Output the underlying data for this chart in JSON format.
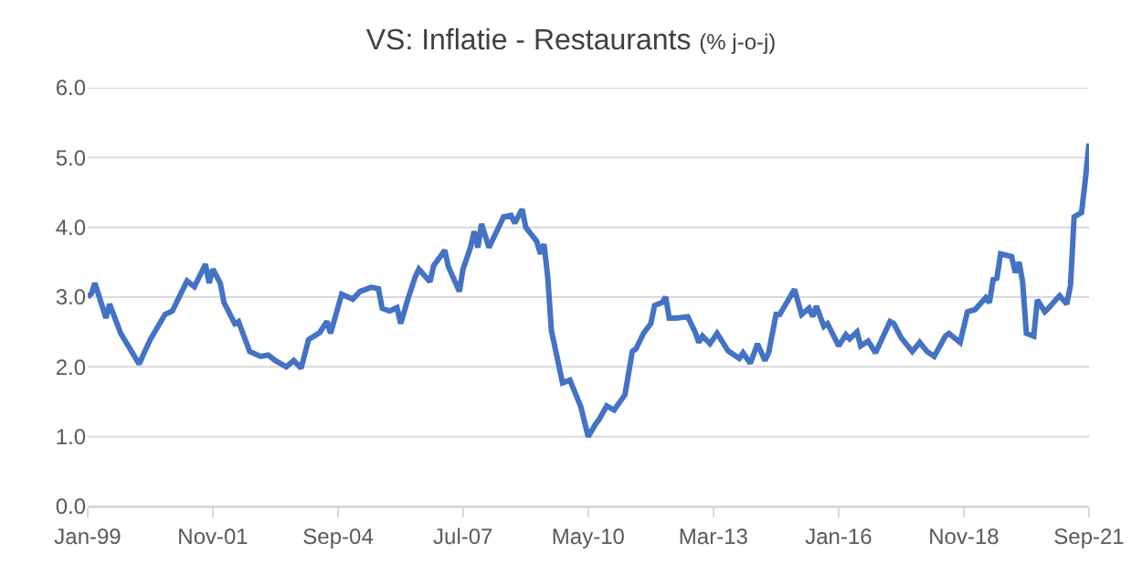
{
  "chart_data": {
    "type": "line",
    "title": "VS: Inflatie - Restaurants",
    "subtitle": "(% j-o-j)",
    "x": [
      "1999-01",
      "1999-02",
      "1999-03",
      "1999-06",
      "1999-07",
      "1999-10",
      "2000-03",
      "2000-06",
      "2000-10",
      "2000-12",
      "2001-04",
      "2001-06",
      "2001-09",
      "2001-10",
      "2001-11",
      "2002-01",
      "2002-02",
      "2002-05",
      "2002-06",
      "2002-09",
      "2002-12",
      "2003-02",
      "2003-04",
      "2003-07",
      "2003-09",
      "2003-11",
      "2004-01",
      "2004-04",
      "2004-06",
      "2004-07",
      "2004-10",
      "2005-01",
      "2005-03",
      "2005-06",
      "2005-08",
      "2005-09",
      "2005-11",
      "2006-01",
      "2006-02",
      "2006-04",
      "2006-06",
      "2006-07",
      "2006-10",
      "2006-11",
      "2007-02",
      "2007-03",
      "2007-06",
      "2007-07",
      "2007-09",
      "2007-10",
      "2007-11",
      "2007-12",
      "2008-02",
      "2008-06",
      "2008-08",
      "2008-09",
      "2008-11",
      "2008-12",
      "2009-03",
      "2009-04",
      "2009-05",
      "2009-06",
      "2009-07",
      "2009-10",
      "2009-12",
      "2010-03",
      "2010-05",
      "2010-07",
      "2010-08",
      "2010-10",
      "2010-12",
      "2011-03",
      "2011-05",
      "2011-06",
      "2011-08",
      "2011-10",
      "2011-11",
      "2012-01",
      "2012-02",
      "2012-03",
      "2012-05",
      "2012-08",
      "2012-10",
      "2012-11",
      "2012-12",
      "2013-02",
      "2013-04",
      "2013-07",
      "2013-10",
      "2013-11",
      "2014-01",
      "2014-03",
      "2014-05",
      "2014-06",
      "2014-08",
      "2014-09",
      "2015-01",
      "2015-03",
      "2015-05",
      "2015-06",
      "2015-07",
      "2015-09",
      "2015-10",
      "2016-01",
      "2016-03",
      "2016-04",
      "2016-06",
      "2016-07",
      "2016-09",
      "2016-11",
      "2017-03",
      "2017-04",
      "2017-06",
      "2017-09",
      "2017-11",
      "2018-01",
      "2018-03",
      "2018-06",
      "2018-07",
      "2018-10",
      "2018-12",
      "2019-02",
      "2019-05",
      "2019-06",
      "2019-07",
      "2019-08",
      "2019-09",
      "2019-12",
      "2020-01",
      "2020-02",
      "2020-03",
      "2020-04",
      "2020-06",
      "2020-07",
      "2020-09",
      "2020-10",
      "2020-12",
      "2021-01",
      "2021-03",
      "2021-04",
      "2021-05",
      "2021-07",
      "2021-08",
      "2021-09"
    ],
    "series": [
      {
        "color": "#4472c4",
        "values": [
          3.0,
          3.05,
          3.2,
          2.7,
          2.9,
          2.48,
          2.04,
          2.39,
          2.75,
          2.8,
          3.23,
          3.15,
          3.47,
          3.2,
          3.4,
          3.2,
          2.92,
          2.62,
          2.65,
          2.22,
          2.15,
          2.17,
          2.09,
          2.0,
          2.09,
          1.98,
          2.39,
          2.49,
          2.65,
          2.48,
          3.04,
          2.97,
          3.08,
          3.14,
          3.12,
          2.84,
          2.8,
          2.85,
          2.62,
          2.97,
          3.29,
          3.4,
          3.22,
          3.45,
          3.67,
          3.44,
          3.08,
          3.4,
          3.71,
          3.94,
          3.71,
          4.05,
          3.71,
          4.15,
          4.17,
          4.06,
          4.26,
          4.0,
          3.8,
          3.62,
          3.76,
          3.28,
          2.52,
          1.77,
          1.81,
          1.43,
          1.0,
          1.18,
          1.25,
          1.44,
          1.38,
          1.6,
          2.22,
          2.26,
          2.48,
          2.62,
          2.88,
          2.92,
          3.0,
          2.7,
          2.7,
          2.72,
          2.5,
          2.35,
          2.44,
          2.33,
          2.48,
          2.23,
          2.12,
          2.2,
          2.05,
          2.33,
          2.09,
          2.2,
          2.75,
          2.75,
          3.11,
          2.75,
          2.84,
          2.72,
          2.87,
          2.58,
          2.62,
          2.3,
          2.46,
          2.4,
          2.5,
          2.3,
          2.37,
          2.2,
          2.65,
          2.62,
          2.42,
          2.22,
          2.35,
          2.22,
          2.15,
          2.44,
          2.48,
          2.35,
          2.79,
          2.82,
          2.99,
          2.92,
          3.25,
          3.27,
          3.62,
          3.58,
          3.35,
          3.5,
          3.22,
          2.48,
          2.44,
          2.96,
          2.79,
          2.84,
          2.96,
          3.02,
          2.9,
          3.17,
          4.15,
          4.21,
          4.67,
          5.2
        ]
      }
    ],
    "xlim": [
      "1999-01",
      "2021-09"
    ],
    "xticks": [
      {
        "value": "1999-01",
        "label": "Jan-99"
      },
      {
        "value": "2001-11",
        "label": "Nov-01"
      },
      {
        "value": "2004-09",
        "label": "Sep-04"
      },
      {
        "value": "2007-07",
        "label": "Jul-07"
      },
      {
        "value": "2010-05",
        "label": "May-10"
      },
      {
        "value": "2013-03",
        "label": "Mar-13"
      },
      {
        "value": "2016-01",
        "label": "Jan-16"
      },
      {
        "value": "2018-11",
        "label": "Nov-18"
      },
      {
        "value": "2021-09",
        "label": "Sep-21"
      }
    ],
    "ylim": [
      0,
      6
    ],
    "yticks": [
      {
        "value": 0,
        "label": "0.0"
      },
      {
        "value": 1,
        "label": "1.0"
      },
      {
        "value": 2,
        "label": "2.0"
      },
      {
        "value": 3,
        "label": "3.0"
      },
      {
        "value": 4,
        "label": "4.0"
      },
      {
        "value": 5,
        "label": "5.0"
      },
      {
        "value": 6,
        "label": "6.0"
      }
    ],
    "grid": "y",
    "marker": "none",
    "line_style": "solid"
  }
}
